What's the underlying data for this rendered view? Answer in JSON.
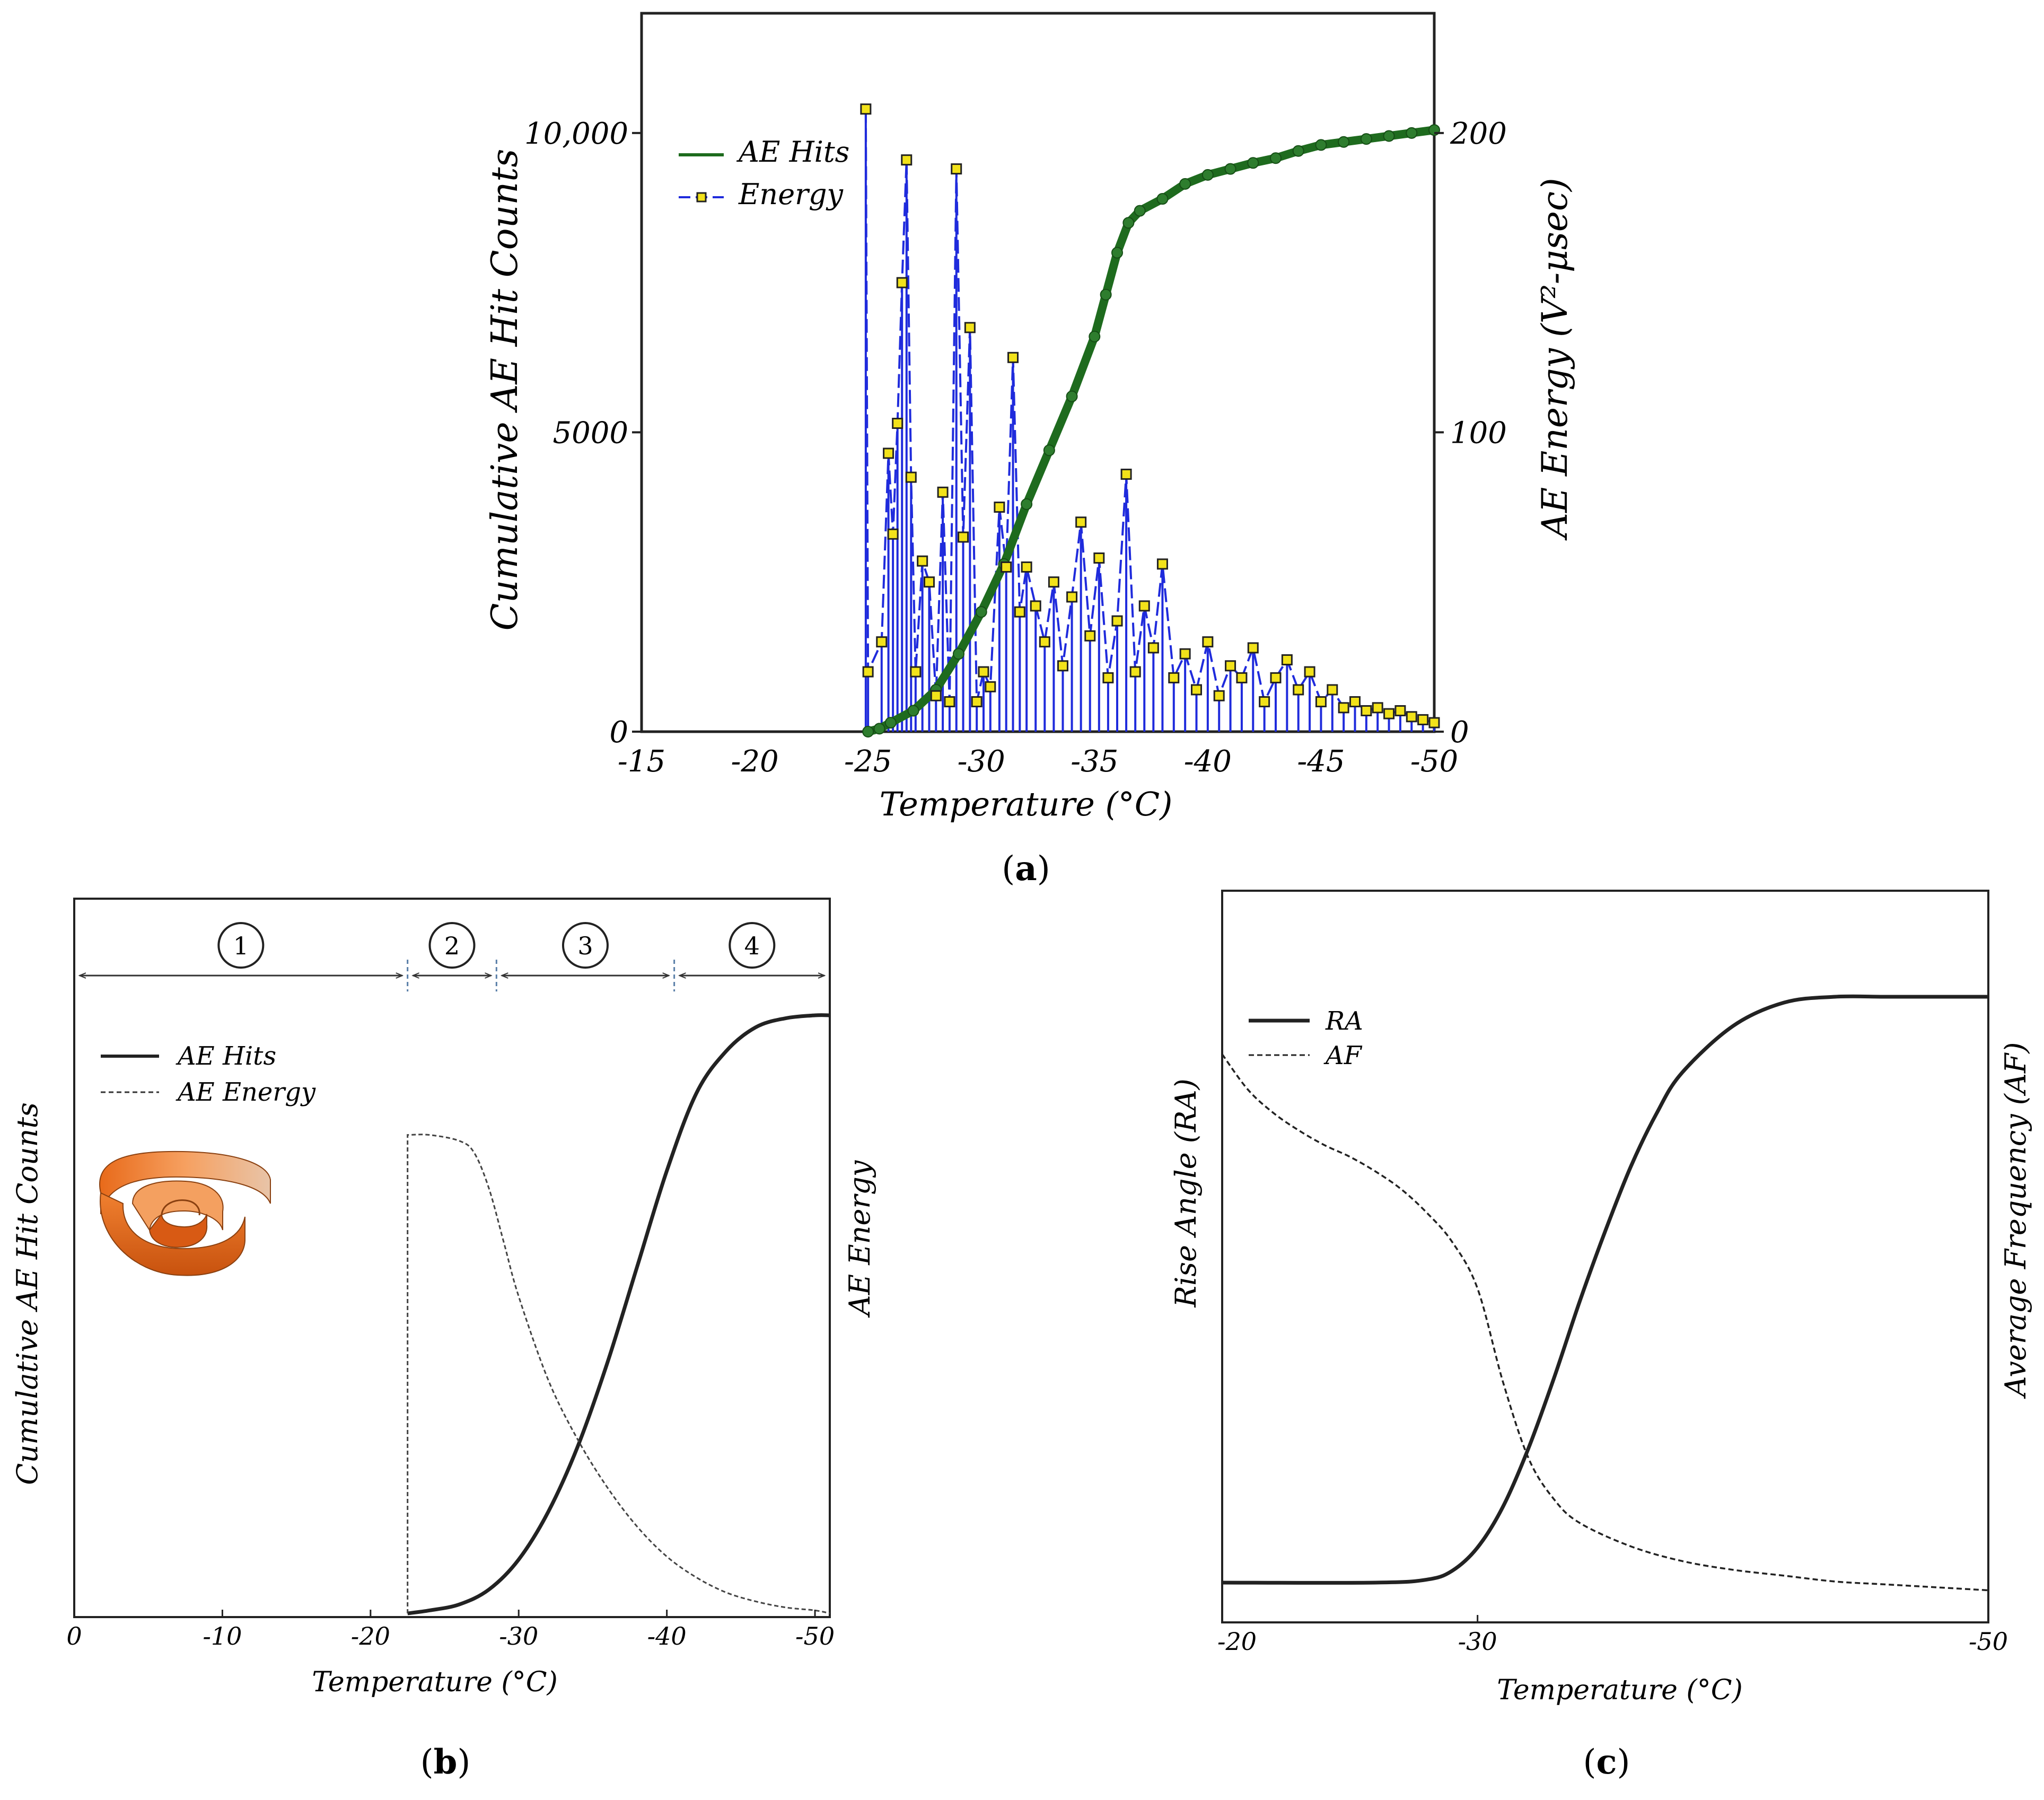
{
  "chart_data": [
    {
      "id": "a",
      "type": "line",
      "panel_label": "(a)",
      "xlabel": "Temperature  (°C)",
      "ylabel_left": "Cumulative AE Hit Counts",
      "ylabel_right": "AE Energy (V²-μsec)",
      "xlim": [
        -15,
        -50
      ],
      "ylim_left": [
        0,
        12000
      ],
      "ylim_right": [
        0,
        240
      ],
      "x_ticks": [
        "-15",
        "-20",
        "-25",
        "-30",
        "-35",
        "-40",
        "-45",
        "-50"
      ],
      "x_tick_values": [
        -15,
        -20,
        -25,
        -30,
        -35,
        -40,
        -45,
        -50
      ],
      "y_ticks_left": [
        "0",
        "5000",
        "10,000"
      ],
      "y_tick_values_left": [
        0,
        5000,
        10000
      ],
      "y_ticks_right": [
        "0",
        "100",
        "200"
      ],
      "y_tick_values_right": [
        0,
        100,
        200
      ],
      "legend": [
        "AE Hits",
        "Energy"
      ],
      "colors": {
        "hits": "#1e6b1e",
        "energy": "#1f2bdc",
        "marker_fill": "#f2e21a",
        "marker_edge": "#222222"
      },
      "series": [
        {
          "name": "AE Hits",
          "axis": "left",
          "x": [
            -25,
            -25.5,
            -26,
            -27,
            -28,
            -29,
            -30,
            -31,
            -32,
            -33,
            -34,
            -35,
            -35.5,
            -36,
            -36.5,
            -37,
            -38,
            -39,
            -40,
            -41,
            -42,
            -43,
            -44,
            -45,
            -46,
            -47,
            -48,
            -49,
            -50
          ],
          "y": [
            0,
            50,
            150,
            350,
            700,
            1300,
            2000,
            2800,
            3800,
            4700,
            5600,
            6600,
            7300,
            8000,
            8500,
            8700,
            8900,
            9150,
            9300,
            9400,
            9500,
            9580,
            9700,
            9800,
            9850,
            9900,
            9950,
            10000,
            10050
          ]
        },
        {
          "name": "Energy",
          "axis": "right",
          "x": [
            -24.9,
            -25.0,
            -25.6,
            -25.9,
            -26.1,
            -26.3,
            -26.5,
            -26.7,
            -26.9,
            -27.1,
            -27.4,
            -27.7,
            -28.0,
            -28.3,
            -28.6,
            -28.9,
            -29.2,
            -29.5,
            -29.8,
            -30.1,
            -30.4,
            -30.8,
            -31.1,
            -31.4,
            -31.7,
            -32.0,
            -32.4,
            -32.8,
            -33.2,
            -33.6,
            -34.0,
            -34.4,
            -34.8,
            -35.2,
            -35.6,
            -36.0,
            -36.4,
            -36.8,
            -37.2,
            -37.6,
            -38.0,
            -38.5,
            -39.0,
            -39.5,
            -40.0,
            -40.5,
            -41.0,
            -41.5,
            -42.0,
            -42.5,
            -43.0,
            -43.5,
            -44.0,
            -44.5,
            -45.0,
            -45.5,
            -46.0,
            -46.5,
            -47.0,
            -47.5,
            -48.0,
            -48.5,
            -49.0,
            -49.5,
            -50.0
          ],
          "y": [
            208,
            20,
            30,
            93,
            66,
            103,
            150,
            191,
            85,
            20,
            57,
            50,
            12,
            80,
            10,
            188,
            65,
            135,
            10,
            20,
            15,
            75,
            55,
            125,
            40,
            55,
            42,
            30,
            50,
            22,
            45,
            70,
            32,
            58,
            18,
            37,
            86,
            20,
            42,
            28,
            56,
            18,
            26,
            14,
            30,
            12,
            22,
            18,
            28,
            10,
            18,
            24,
            14,
            20,
            10,
            14,
            8,
            10,
            7,
            8,
            6,
            7,
            5,
            4,
            3
          ]
        }
      ]
    },
    {
      "id": "b",
      "type": "line",
      "panel_label": "(b)",
      "xlabel": "Temperature (°C)",
      "ylabel_left": "Cumulative AE Hit Counts",
      "ylabel_right": "AE Energy",
      "xlim": [
        0,
        -51
      ],
      "x_ticks": [
        "0",
        "-10",
        "-20",
        "-30",
        "-40",
        "-50"
      ],
      "x_tick_values": [
        0,
        -10,
        -20,
        -30,
        -40,
        -50
      ],
      "legend": [
        "AE Hits",
        "AE Energy"
      ],
      "regions": [
        {
          "label": "1",
          "from": 0,
          "to": -22.5
        },
        {
          "label": "2",
          "from": -22.5,
          "to": -28.5
        },
        {
          "label": "3",
          "from": -28.5,
          "to": -40.5
        },
        {
          "label": "4",
          "from": -40.5,
          "to": -51
        }
      ],
      "series": [
        {
          "name": "AE Hits",
          "x": [
            -22.5,
            -24,
            -26,
            -28,
            -30,
            -32,
            -34,
            -36,
            -38,
            -40,
            -42,
            -44,
            -46,
            -48,
            -50,
            -51
          ],
          "y": [
            0.0,
            0.005,
            0.015,
            0.04,
            0.09,
            0.17,
            0.28,
            0.42,
            0.58,
            0.74,
            0.87,
            0.94,
            0.98,
            0.995,
            1.0,
            1.0
          ]
        },
        {
          "name": "AE Energy",
          "x": [
            -22.5,
            -22.5,
            -24,
            -26,
            -27,
            -28,
            -29,
            -30,
            -32,
            -34,
            -36,
            -38,
            -40,
            -42,
            -44,
            -46,
            -48,
            -50,
            -51
          ],
          "y": [
            0.0,
            0.8,
            0.8,
            0.79,
            0.77,
            0.71,
            0.62,
            0.53,
            0.39,
            0.29,
            0.21,
            0.145,
            0.095,
            0.06,
            0.035,
            0.02,
            0.01,
            0.005,
            0.0
          ]
        }
      ]
    },
    {
      "id": "c",
      "type": "line",
      "panel_label": "(c)",
      "xlabel": "Temperature (°C)",
      "ylabel_left": "Rise Angle (RA)",
      "ylabel_right": "Average Frequency (AF)",
      "xlim": [
        -20,
        -50
      ],
      "x_ticks": [
        "-20",
        "-30",
        "-50"
      ],
      "x_tick_values": [
        -20,
        -30,
        -50
      ],
      "legend": [
        "RA",
        "AF"
      ],
      "series": [
        {
          "name": "RA",
          "x": [
            -20,
            -26,
            -28,
            -29,
            -30,
            -31,
            -32,
            -33,
            -34,
            -35,
            -36,
            -37,
            -38,
            -40,
            -42,
            -44,
            -46,
            -48,
            -50
          ],
          "y": [
            0.0,
            0.0,
            0.005,
            0.02,
            0.06,
            0.13,
            0.23,
            0.35,
            0.48,
            0.6,
            0.71,
            0.8,
            0.87,
            0.95,
            0.99,
            1.0,
            1.0,
            1.0,
            1.0
          ]
        },
        {
          "name": "AF",
          "x": [
            -20,
            -21,
            -22,
            -23,
            -24,
            -25,
            -26,
            -27,
            -28,
            -29,
            -30,
            -31,
            -32,
            -33,
            -34,
            -36,
            -38,
            -40,
            -42,
            -44,
            -46,
            -48,
            -50
          ],
          "y": [
            0.92,
            0.86,
            0.82,
            0.79,
            0.765,
            0.745,
            0.72,
            0.69,
            0.65,
            0.6,
            0.52,
            0.36,
            0.23,
            0.16,
            0.12,
            0.08,
            0.055,
            0.04,
            0.03,
            0.02,
            0.015,
            0.01,
            0.005
          ]
        }
      ]
    }
  ]
}
